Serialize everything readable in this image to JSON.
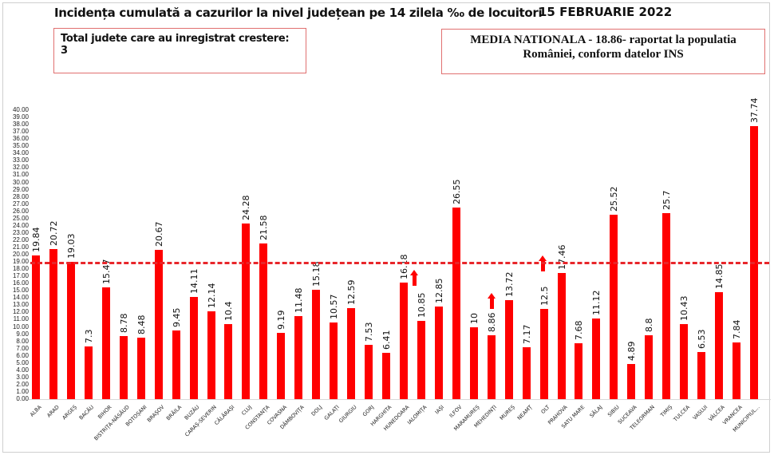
{
  "header": {
    "title": "Incidența cumulată a cazurilor la nivel județean pe 14 zilela ‰ de locuitori",
    "date": "15 FEBRUARIE 2022"
  },
  "info_boxes": {
    "left": "Total judete care au inregistrat crestere: 3",
    "right_line1": "MEDIA NATIONALA - 18.86-  raportat la populatia",
    "right_line2": "României, conform datelor INS"
  },
  "colors": {
    "bar": "#ff0000",
    "average_line": "#e8262a",
    "box_border": "#e07070"
  },
  "chart_data": {
    "type": "bar",
    "title": "Incidența cumulată a cazurilor la nivel județean pe 14 zilela ‰ de locuitori",
    "subtitle": "15 FEBRUARIE 2022",
    "xlabel": "",
    "ylabel": "",
    "ylim": [
      0,
      40
    ],
    "yticks": [
      "0.00",
      "1.00",
      "2.00",
      "3.00",
      "4.00",
      "5.00",
      "6.00",
      "7.00",
      "8.00",
      "9.00",
      "10.00",
      "11.00",
      "12.00",
      "13.00",
      "14.00",
      "15.00",
      "16.00",
      "17.00",
      "18.00",
      "19.00",
      "20.00",
      "21.00",
      "22.00",
      "23.00",
      "24.00",
      "25.00",
      "26.00",
      "27.00",
      "28.00",
      "29.00",
      "30.00",
      "31.00",
      "32.00",
      "33.00",
      "34.00",
      "35.00",
      "36.00",
      "37.00",
      "38.00",
      "39.00",
      "40.00"
    ],
    "grid": false,
    "legend": null,
    "reference_line": {
      "label": "MEDIA NATIONALA",
      "value": 18.86,
      "style": "dashed"
    },
    "categories": [
      "ALBA",
      "ARAD",
      "ARGEȘ",
      "BACĂU",
      "BIHOR",
      "BISTRIȚA-NĂSĂUD",
      "BOTOȘANI",
      "BRAȘOV",
      "BRĂILA",
      "BUZĂU",
      "CARAȘ-SEVERIN",
      "CĂLĂRAȘI",
      "CLUJ",
      "CONSTANȚA",
      "COVASNA",
      "DÂMBOVIȚA",
      "DOLJ",
      "GALAȚI",
      "GIURGIU",
      "GORJ",
      "HARGHITA",
      "HUNEDOARA",
      "IALOMIȚA",
      "IAȘI",
      "ILFOV",
      "MARAMUREȘ",
      "MEHEDINȚI",
      "MUREȘ",
      "NEAMȚ",
      "OLT",
      "PRAHOVA",
      "SATU MARE",
      "SĂLAJ",
      "SIBIU",
      "SUCEAVA",
      "TELEORMAN",
      "TIMIȘ",
      "TULCEA",
      "VASLUI",
      "VÂLCEA",
      "VRANCEA",
      "MUNICIPIUL..."
    ],
    "values": [
      19.84,
      20.72,
      19.03,
      7.3,
      15.47,
      8.78,
      8.48,
      20.67,
      9.45,
      14.11,
      12.14,
      10.4,
      24.28,
      21.58,
      9.19,
      11.48,
      15.18,
      10.57,
      12.59,
      7.53,
      6.41,
      16.18,
      10.85,
      12.85,
      26.55,
      10,
      8.86,
      13.72,
      7.17,
      12.5,
      17.46,
      7.68,
      11.12,
      25.52,
      4.89,
      8.8,
      25.7,
      10.43,
      6.53,
      14.85,
      7.84,
      37.74
    ],
    "value_labels": [
      "19.84",
      "20.72",
      "19.03",
      "7.3",
      "15.47",
      "8.78",
      "8.48",
      "20.67",
      "9.45",
      "14.11",
      "12.14",
      "10.4",
      "24.28",
      "21.58",
      "9.19",
      "11.48",
      "15.18",
      "10.57",
      "12.59",
      "7.53",
      "6.41",
      "16.18",
      "10.85",
      "12.85",
      "26.55",
      "10",
      "8.86",
      "13.72",
      "7.17",
      "12.5",
      "17.46",
      "7.68",
      "11.12",
      "25.52",
      "4.89",
      "8.8",
      "25.7",
      "10.43",
      "6.53",
      "14.85",
      "7.84",
      "37.74"
    ],
    "annotations": [
      {
        "type": "up-arrow",
        "category": "IALOMIȚA",
        "meaning": "increase"
      },
      {
        "type": "up-arrow",
        "category": "MEHEDINȚI",
        "meaning": "increase"
      },
      {
        "type": "up-arrow",
        "category": "OLT",
        "meaning": "increase"
      }
    ]
  }
}
